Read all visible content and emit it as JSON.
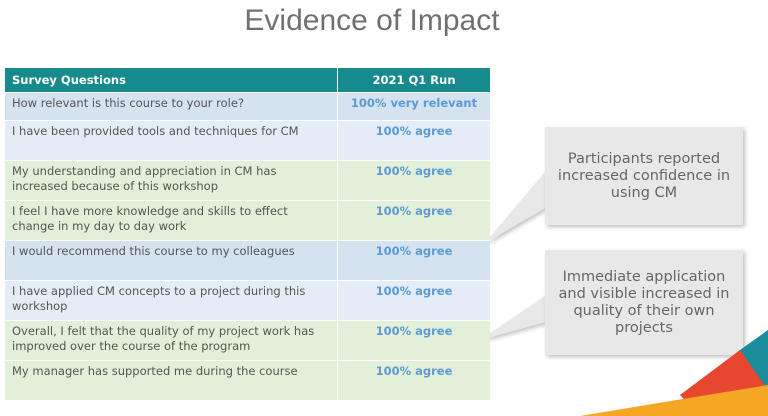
{
  "title": "Evidence of Impact",
  "table": {
    "headers": [
      "Survey Questions",
      "2021 Q1 Run"
    ],
    "rows": [
      [
        "How relevant is this course to your role?",
        "100% very relevant"
      ],
      [
        "I have been provided tools and techniques for CM",
        "100% agree"
      ],
      [
        "My understanding and appreciation in CM has increased because of this workshop",
        "100% agree"
      ],
      [
        "I feel I have more knowledge and skills to effect change in my day to day work",
        "100% agree"
      ],
      [
        "I would recommend this course to my colleagues",
        "100% agree"
      ],
      [
        "I have applied CM concepts to a project during this workshop",
        "100% agree"
      ],
      [
        "Overall, I felt that the quality of my project work has improved over the course of the program",
        "100% agree"
      ],
      [
        "My manager has supported me during the course",
        "100% agree"
      ]
    ]
  },
  "callouts": [
    "Participants reported increased confidence in using CM",
    "Immediate application and visible increased in quality of their own projects"
  ]
}
